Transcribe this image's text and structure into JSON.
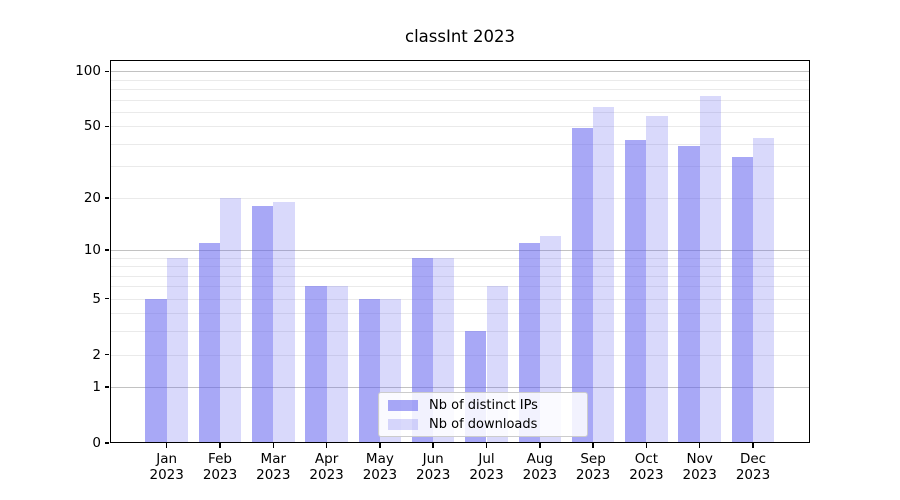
{
  "title": "classInt 2023",
  "chart_data": {
    "type": "bar",
    "title": "classInt 2023",
    "categories": [
      "Jan",
      "Feb",
      "Mar",
      "Apr",
      "May",
      "Jun",
      "Jul",
      "Aug",
      "Sep",
      "Oct",
      "Nov",
      "Dec"
    ],
    "year_label": "2023",
    "series": [
      {
        "name": "Nb of distinct IPs",
        "color": "rgba(96,96,239,0.55)",
        "values": [
          5,
          11,
          18,
          6,
          5,
          9,
          3,
          11,
          49,
          42,
          39,
          34
        ]
      },
      {
        "name": "Nb of downloads",
        "color": "rgba(96,96,239,0.24)",
        "values": [
          9,
          20,
          19,
          6,
          5,
          9,
          6,
          12,
          64,
          57,
          73,
          43
        ]
      }
    ],
    "yticks": [
      0,
      1,
      2,
      5,
      10,
      20,
      50,
      100
    ],
    "grid_minor_values": [
      2,
      3,
      4,
      5,
      6,
      7,
      8,
      9,
      20,
      30,
      40,
      50,
      60,
      70,
      80,
      90
    ],
    "grid_major_values": [
      1,
      10,
      100
    ],
    "scale": "log1p",
    "ylim": [
      0,
      113
    ],
    "grid": true,
    "legend_position": "lower-center",
    "style": {
      "bar_dark_hex": "#a7a7f7",
      "bar_light_hex": "#d9d9fa",
      "grid_minor_color": "#eaeaea",
      "grid_major_color": "#c2c2c2",
      "spine_color": "#000000"
    }
  }
}
